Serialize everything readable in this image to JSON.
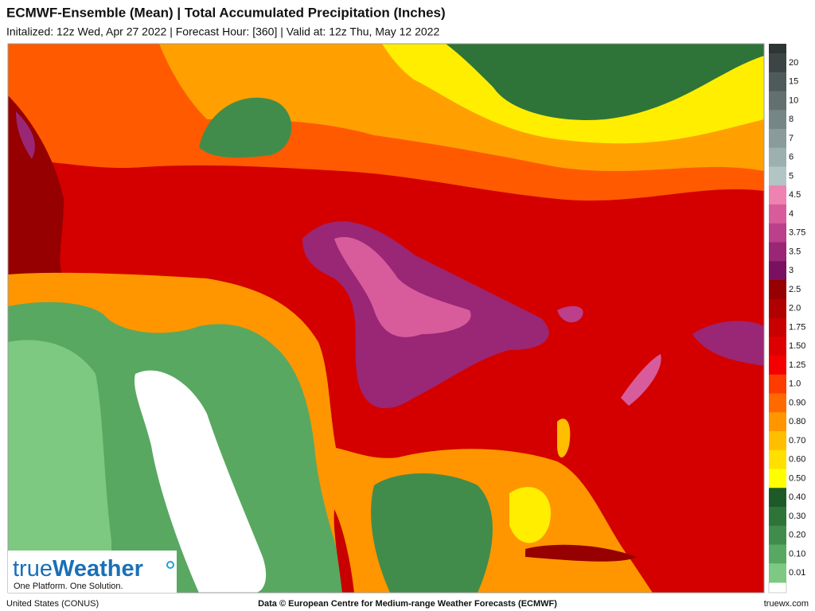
{
  "header": {
    "title": "ECMWF-Ensemble (Mean)  |  Total Accumulated Precipitation (Inches)",
    "subtitle": "Initalized: 12z Wed, Apr 27 2022  |  Forecast Hour: [360]  |  Valid at: 12z Thu, May 12 2022"
  },
  "legend": [
    {
      "label": "20",
      "color": "#3d4444"
    },
    {
      "label": "15",
      "color": "#4f5a5a"
    },
    {
      "label": "10",
      "color": "#627070"
    },
    {
      "label": "8",
      "color": "#758686"
    },
    {
      "label": "7",
      "color": "#899b9b"
    },
    {
      "label": "6",
      "color": "#9db0b0"
    },
    {
      "label": "5",
      "color": "#b3c4c4"
    },
    {
      "label": "4.5",
      "color": "#ee82b0"
    },
    {
      "label": "4",
      "color": "#d85c9c"
    },
    {
      "label": "3.75",
      "color": "#bb3f8a"
    },
    {
      "label": "3.5",
      "color": "#9a2676"
    },
    {
      "label": "3",
      "color": "#7a1060"
    },
    {
      "label": "2.5",
      "color": "#960000"
    },
    {
      "label": "2.0",
      "color": "#b00000"
    },
    {
      "label": "1.75",
      "color": "#c80000"
    },
    {
      "label": "1.50",
      "color": "#de0000"
    },
    {
      "label": "1.25",
      "color": "#f40000"
    },
    {
      "label": "1.0",
      "color": "#ff3c00"
    },
    {
      "label": "0.90",
      "color": "#ff6a00"
    },
    {
      "label": "0.80",
      "color": "#ff9600"
    },
    {
      "label": "0.70",
      "color": "#ffbe00"
    },
    {
      "label": "0.60",
      "color": "#ffe000"
    },
    {
      "label": "0.50",
      "color": "#ffff00"
    },
    {
      "label": "0.40",
      "color": "#1d5a28"
    },
    {
      "label": "0.30",
      "color": "#2e7438"
    },
    {
      "label": "0.20",
      "color": "#418c4b"
    },
    {
      "label": "0.10",
      "color": "#58a861"
    },
    {
      "label": "0.01",
      "color": "#7dc981"
    }
  ],
  "logo": {
    "prefix": "true",
    "main": "Weather",
    "tagline": "One Platform. One Solution."
  },
  "footer": {
    "left": "United States (CONUS)",
    "center": "Data © European Centre for Medium-range Weather Forecasts (ECMWF)",
    "right": "truewx.com"
  }
}
